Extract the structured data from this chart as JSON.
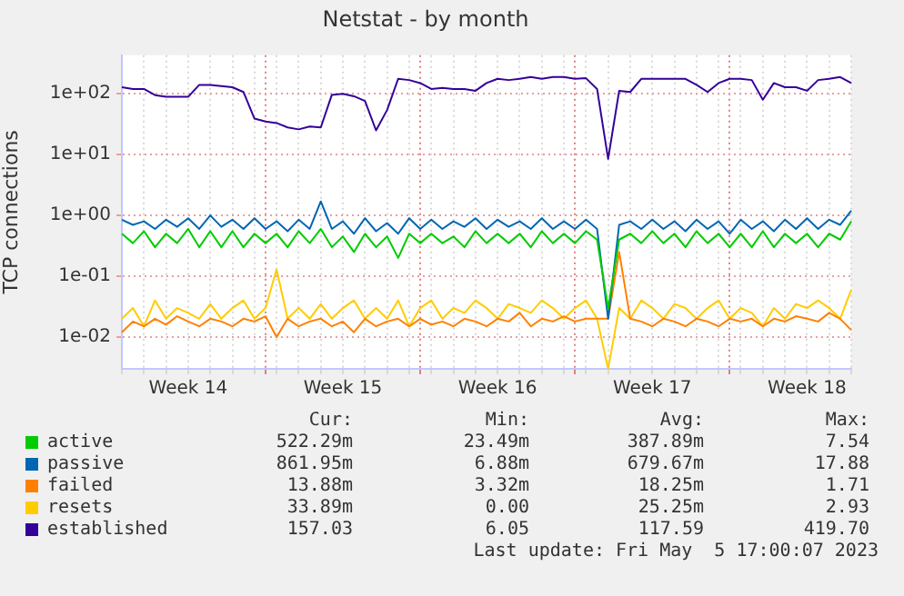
{
  "chart_data": {
    "type": "line",
    "title": "Netstat - by month",
    "ylabel": "TCP connections",
    "categories": [
      null,
      null,
      null,
      null,
      null,
      null,
      "Week 14",
      null,
      null,
      null,
      null,
      null,
      null,
      null,
      null,
      null,
      null,
      null,
      null,
      null,
      "Week 15",
      null,
      null,
      null,
      null,
      null,
      null,
      null,
      null,
      null,
      null,
      null,
      null,
      null,
      "Week 16",
      null,
      null,
      null,
      null,
      null,
      null,
      null,
      null,
      null,
      null,
      null,
      null,
      null,
      "Week 17",
      null,
      null,
      null,
      null,
      null,
      null,
      null,
      null,
      null,
      null,
      null,
      null,
      null,
      "Week 18",
      null,
      null,
      null,
      null
    ],
    "series": [
      {
        "name": "active",
        "color": "#00cc00",
        "values": [
          0.5,
          0.35,
          0.55,
          0.3,
          0.5,
          0.35,
          0.6,
          0.3,
          0.55,
          0.3,
          0.55,
          0.3,
          0.5,
          0.35,
          0.5,
          0.3,
          0.55,
          0.35,
          0.6,
          0.3,
          0.45,
          0.25,
          0.5,
          0.3,
          0.45,
          0.2,
          0.5,
          0.35,
          0.5,
          0.35,
          0.45,
          0.3,
          0.55,
          0.35,
          0.5,
          0.35,
          0.5,
          0.3,
          0.55,
          0.35,
          0.5,
          0.35,
          0.55,
          0.4,
          0.03,
          0.4,
          0.5,
          0.35,
          0.55,
          0.35,
          0.5,
          0.3,
          0.55,
          0.35,
          0.5,
          0.3,
          0.5,
          0.3,
          0.55,
          0.3,
          0.5,
          0.35,
          0.5,
          0.3,
          0.5,
          0.4,
          0.8
        ]
      },
      {
        "name": "passive",
        "color": "#0066b3",
        "values": [
          0.85,
          0.7,
          0.8,
          0.6,
          0.85,
          0.65,
          0.9,
          0.6,
          1.0,
          0.65,
          0.85,
          0.6,
          0.9,
          0.6,
          0.8,
          0.55,
          0.85,
          0.6,
          1.7,
          0.6,
          0.8,
          0.5,
          0.9,
          0.55,
          0.75,
          0.5,
          0.9,
          0.6,
          0.85,
          0.6,
          0.8,
          0.65,
          0.9,
          0.6,
          0.85,
          0.65,
          0.8,
          0.6,
          0.9,
          0.6,
          0.8,
          0.6,
          0.85,
          0.6,
          0.02,
          0.7,
          0.8,
          0.6,
          0.85,
          0.6,
          0.8,
          0.55,
          0.85,
          0.6,
          0.8,
          0.5,
          0.85,
          0.6,
          0.8,
          0.55,
          0.85,
          0.6,
          0.9,
          0.6,
          0.85,
          0.7,
          1.2
        ]
      },
      {
        "name": "failed",
        "color": "#ff8000",
        "values": [
          0.012,
          0.018,
          0.015,
          0.02,
          0.016,
          0.022,
          0.018,
          0.015,
          0.02,
          0.018,
          0.015,
          0.02,
          0.018,
          0.022,
          0.01,
          0.02,
          0.015,
          0.018,
          0.02,
          0.015,
          0.018,
          0.012,
          0.02,
          0.015,
          0.018,
          0.02,
          0.015,
          0.02,
          0.016,
          0.018,
          0.015,
          0.02,
          0.018,
          0.015,
          0.02,
          0.018,
          0.025,
          0.015,
          0.02,
          0.018,
          0.022,
          0.018,
          0.02,
          0.02,
          0.02,
          0.25,
          0.02,
          0.018,
          0.015,
          0.02,
          0.018,
          0.015,
          0.02,
          0.018,
          0.015,
          0.02,
          0.018,
          0.02,
          0.015,
          0.02,
          0.018,
          0.022,
          0.02,
          0.018,
          0.025,
          0.02,
          0.013
        ]
      },
      {
        "name": "resets",
        "color": "#ffcc00",
        "values": [
          0.02,
          0.03,
          0.015,
          0.04,
          0.02,
          0.03,
          0.025,
          0.02,
          0.035,
          0.02,
          0.03,
          0.04,
          0.02,
          0.03,
          0.13,
          0.02,
          0.03,
          0.02,
          0.035,
          0.02,
          0.03,
          0.04,
          0.02,
          0.03,
          0.02,
          0.04,
          0.015,
          0.03,
          0.04,
          0.02,
          0.03,
          0.025,
          0.04,
          0.03,
          0.02,
          0.035,
          0.03,
          0.025,
          0.04,
          0.03,
          0.02,
          0.03,
          0.04,
          0.02,
          0.003,
          0.03,
          0.02,
          0.04,
          0.03,
          0.02,
          0.035,
          0.03,
          0.02,
          0.03,
          0.04,
          0.02,
          0.03,
          0.025,
          0.015,
          0.03,
          0.02,
          0.035,
          0.03,
          0.04,
          0.03,
          0.02,
          0.06
        ]
      },
      {
        "name": "established",
        "color": "#330099",
        "values": [
          128,
          120,
          120,
          95,
          89,
          89,
          89,
          140,
          140,
          134,
          128,
          107,
          39,
          35,
          33,
          28,
          26,
          29,
          28,
          96,
          100,
          91,
          76,
          25,
          54,
          176,
          168,
          150,
          120,
          125,
          120,
          120,
          112,
          150,
          176,
          168,
          176,
          188,
          176,
          188,
          188,
          176,
          180,
          120,
          8.5,
          112,
          107,
          176,
          176,
          176,
          176,
          176,
          140,
          107,
          150,
          176,
          176,
          168,
          80,
          150,
          128,
          128,
          112,
          168,
          176,
          188,
          150
        ]
      }
    ],
    "ylim": [
      0.003,
      430
    ],
    "yticks": [
      {
        "value": 0.01,
        "label": "1e-02"
      },
      {
        "value": 0.1,
        "label": "1e-01"
      },
      {
        "value": 1,
        "label": "1e+00"
      },
      {
        "value": 10,
        "label": "1e+01"
      },
      {
        "value": 100,
        "label": "1e+02"
      }
    ],
    "log": "y",
    "grid": true,
    "legend": "bottom",
    "marker": "none",
    "annotations": [
      "Cur:",
      "Min:",
      "Avg:",
      "Max:",
      "522.29m",
      "23.49m",
      "387.89m",
      "7.54",
      "861.95m",
      "6.88m",
      "679.67m",
      "17.88",
      "13.88m",
      "3.32m",
      "18.25m",
      "1.71",
      "33.89m",
      "0.00",
      "25.25m",
      "2.93",
      "157.03",
      "6.05",
      "117.59",
      "419.70",
      "Last update: Fri May  5 17:00:07 2023"
    ]
  }
}
